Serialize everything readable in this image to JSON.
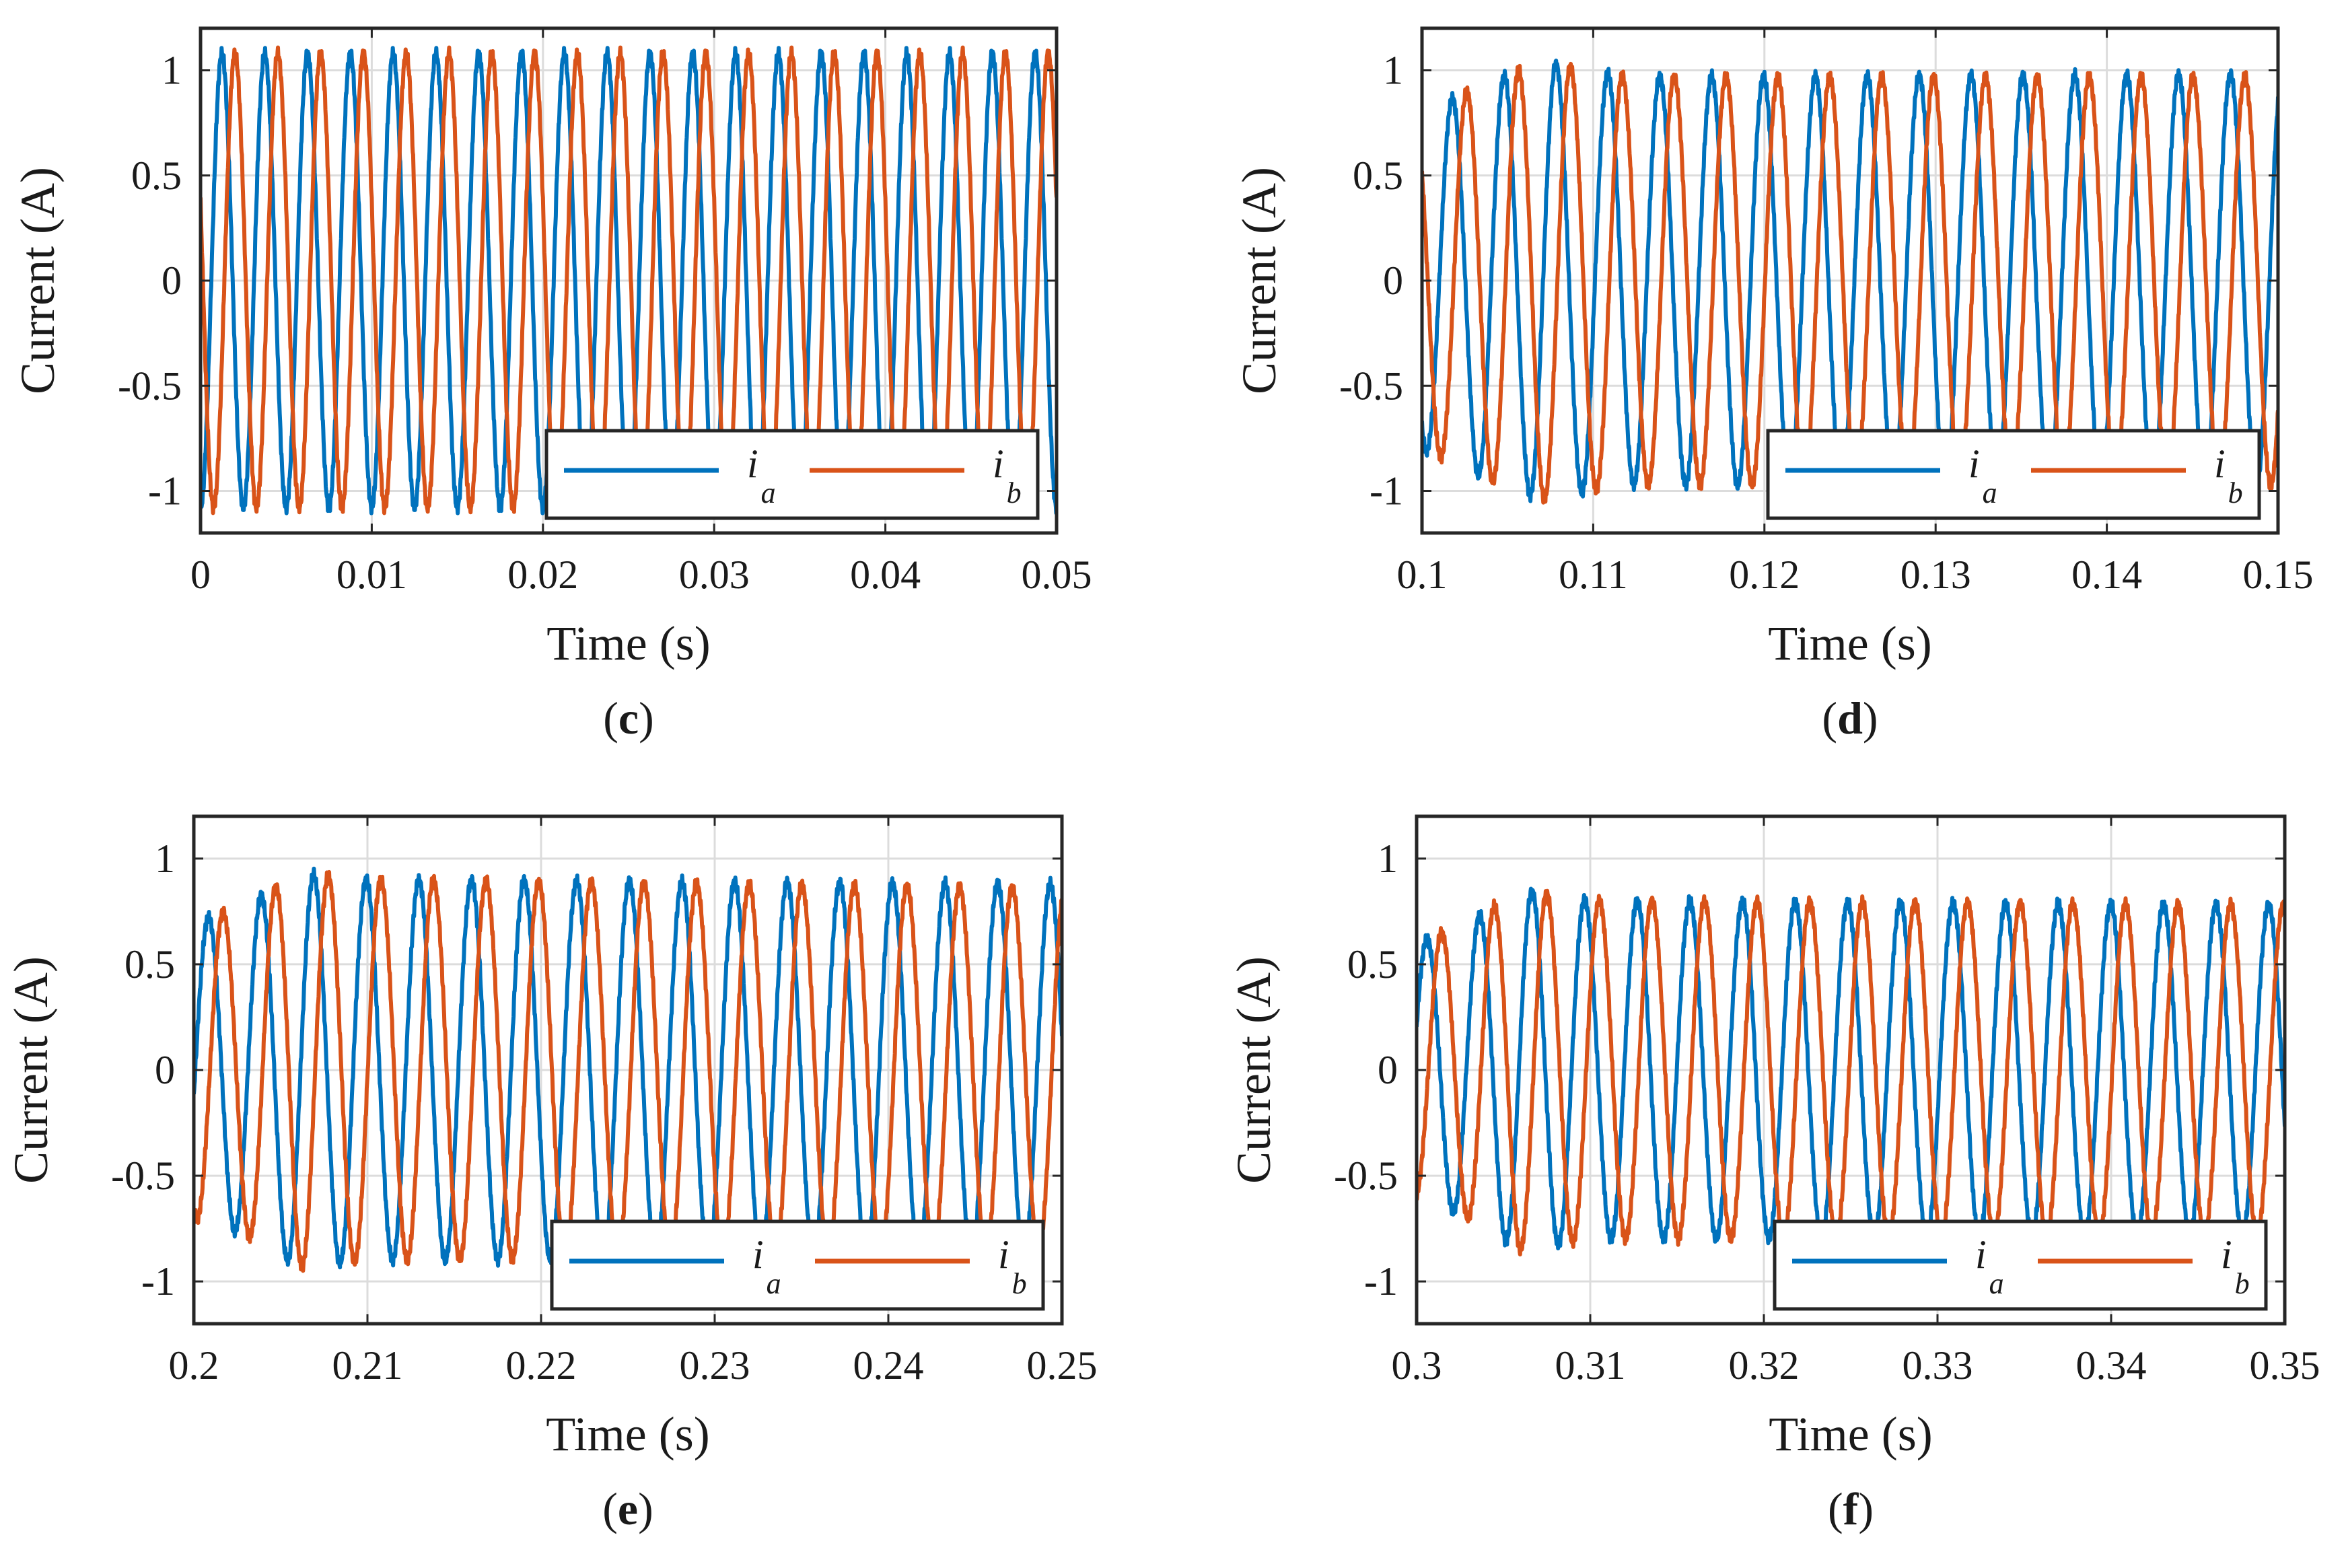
{
  "chart_data": [
    {
      "type": "line",
      "panel": "(c)",
      "caption_letter": "c",
      "xlabel": "Time (s)",
      "ylabel": "Current (A)",
      "xlim": [
        0,
        0.05
      ],
      "ylim": [
        -1.2,
        1.2
      ],
      "xticks": [
        0,
        0.01,
        0.02,
        0.03,
        0.04,
        0.05
      ],
      "xtick_labels": [
        "0",
        "0.01",
        "0.02",
        "0.03",
        "0.04",
        "0.05"
      ],
      "yticks": [
        1,
        0.5,
        0,
        -0.5,
        -1
      ],
      "ytick_labels": [
        "1",
        "0.5",
        "0",
        "-0.5",
        "-1"
      ],
      "grid": true,
      "legend_position": "bottom-right",
      "frequency_hz": 400,
      "series": [
        {
          "name": "ia",
          "label_main": "i",
          "label_sub": "a",
          "color": "#0072BD",
          "phase_deg": -90,
          "amplitude_points": [
            [
              0,
              1.08
            ],
            [
              0.05,
              1.08
            ]
          ]
        },
        {
          "name": "ib",
          "label_main": "i",
          "label_sub": "b",
          "color": "#D95319",
          "phase_deg": -200,
          "amplitude_points": [
            [
              0,
              1.08
            ],
            [
              0.05,
              1.08
            ]
          ]
        }
      ]
    },
    {
      "type": "line",
      "panel": "(d)",
      "caption_letter": "d",
      "xlabel": "Time (s)",
      "ylabel": "Current (A)",
      "xlim": [
        0.1,
        0.15
      ],
      "ylim": [
        -1.2,
        1.2
      ],
      "xticks": [
        0.1,
        0.11,
        0.12,
        0.13,
        0.14,
        0.15
      ],
      "xtick_labels": [
        "0.1",
        "0.11",
        "0.12",
        "0.13",
        "0.14",
        "0.15"
      ],
      "yticks": [
        1,
        0.5,
        0,
        -0.5,
        -1
      ],
      "ytick_labels": [
        "1",
        "0.5",
        "0",
        "-0.5",
        "-1"
      ],
      "grid": true,
      "legend_position": "bottom-right",
      "frequency_hz": 330,
      "series": [
        {
          "name": "ia",
          "label_main": "i",
          "label_sub": "a",
          "color": "#0072BD",
          "phase_deg": -120,
          "amplitude_points": [
            [
              0.1,
              0.8
            ],
            [
              0.104,
              0.95
            ],
            [
              0.107,
              1.04
            ],
            [
              0.112,
              0.97
            ],
            [
              0.15,
              0.98
            ]
          ]
        },
        {
          "name": "ib",
          "label_main": "i",
          "label_sub": "b",
          "color": "#D95319",
          "phase_deg": 140,
          "amplitude_points": [
            [
              0.1,
              0.8
            ],
            [
              0.104,
              0.95
            ],
            [
              0.107,
              1.04
            ],
            [
              0.112,
              0.97
            ],
            [
              0.15,
              0.97
            ]
          ]
        }
      ]
    },
    {
      "type": "line",
      "panel": "(e)",
      "caption_letter": "e",
      "xlabel": "Time (s)",
      "ylabel": "Current (A)",
      "xlim": [
        0.2,
        0.25
      ],
      "ylim": [
        -1.2,
        1.2
      ],
      "xticks": [
        0.2,
        0.21,
        0.22,
        0.23,
        0.24,
        0.25
      ],
      "xtick_labels": [
        "0.2",
        "0.21",
        "0.22",
        "0.23",
        "0.24",
        "0.25"
      ],
      "yticks": [
        1,
        0.5,
        0,
        -0.5,
        -1
      ],
      "ytick_labels": [
        "1",
        "0.5",
        "0",
        "-0.5",
        "-1"
      ],
      "grid": true,
      "legend_position": "bottom-right",
      "frequency_hz": 330,
      "series": [
        {
          "name": "ia",
          "label_main": "i",
          "label_sub": "a",
          "color": "#0072BD",
          "phase_deg": -10,
          "amplitude_points": [
            [
              0.2,
              0.7
            ],
            [
              0.203,
              0.78
            ],
            [
              0.206,
              0.93
            ],
            [
              0.21,
              0.9
            ],
            [
              0.25,
              0.88
            ]
          ]
        },
        {
          "name": "ib",
          "label_main": "i",
          "label_sub": "b",
          "color": "#D95319",
          "phase_deg": 250,
          "amplitude_points": [
            [
              0.2,
              0.7
            ],
            [
              0.203,
              0.78
            ],
            [
              0.206,
              0.93
            ],
            [
              0.21,
              0.9
            ],
            [
              0.25,
              0.86
            ]
          ]
        }
      ]
    },
    {
      "type": "line",
      "panel": "(f)",
      "caption_letter": "f",
      "xlabel": "Time (s)",
      "ylabel": "Current (A)",
      "xlim": [
        0.3,
        0.35
      ],
      "ylim": [
        -1.2,
        1.2
      ],
      "xticks": [
        0.3,
        0.31,
        0.32,
        0.33,
        0.34,
        0.35
      ],
      "xtick_labels": [
        "0.3",
        "0.31",
        "0.32",
        "0.33",
        "0.34",
        "0.35"
      ],
      "yticks": [
        1,
        0.5,
        0,
        -0.5,
        -1
      ],
      "ytick_labels": [
        "1",
        "0.5",
        "0",
        "-0.5",
        "-1"
      ],
      "grid": true,
      "legend_position": "bottom-right",
      "frequency_hz": 330,
      "series": [
        {
          "name": "ia",
          "label_main": "i",
          "label_sub": "a",
          "color": "#0072BD",
          "phase_deg": 20,
          "amplitude_points": [
            [
              0.3,
              0.6
            ],
            [
              0.303,
              0.7
            ],
            [
              0.306,
              0.85
            ],
            [
              0.31,
              0.8
            ],
            [
              0.35,
              0.78
            ]
          ]
        },
        {
          "name": "ib",
          "label_main": "i",
          "label_sub": "b",
          "color": "#D95319",
          "phase_deg": 280,
          "amplitude_points": [
            [
              0.3,
              0.6
            ],
            [
              0.303,
              0.7
            ],
            [
              0.306,
              0.85
            ],
            [
              0.31,
              0.8
            ],
            [
              0.35,
              0.78
            ]
          ]
        }
      ]
    }
  ]
}
